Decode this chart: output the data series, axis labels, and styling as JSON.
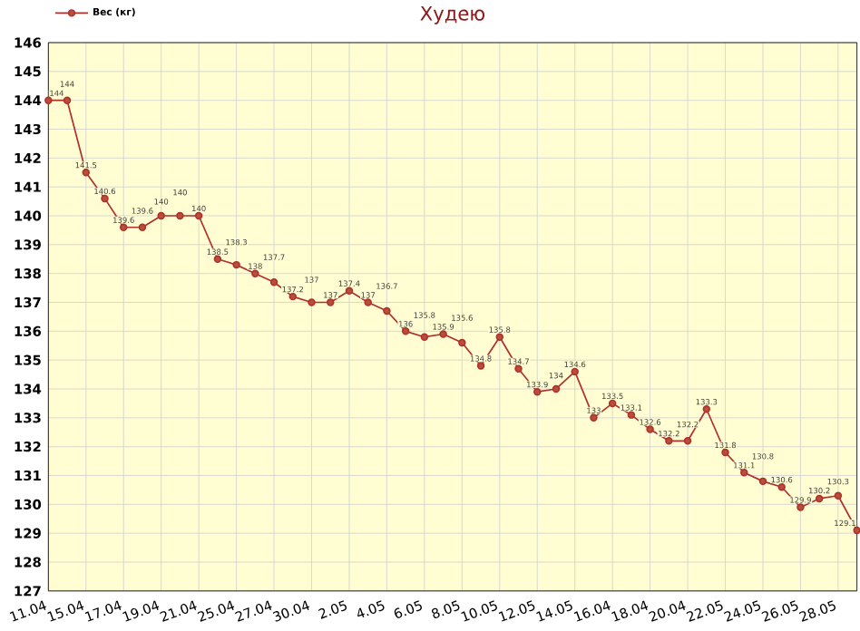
{
  "chart_data": {
    "type": "line",
    "title": "Худею",
    "categories": [
      "11.04",
      null,
      "15.04",
      null,
      "17.04",
      null,
      "19.04",
      null,
      "21.04",
      null,
      "25.04",
      null,
      "27.04",
      null,
      "30.04",
      null,
      "2.05",
      null,
      "4.05",
      null,
      "6.05",
      null,
      "8.05",
      null,
      "10.05",
      null,
      "12.05",
      null,
      "14.05",
      null,
      "16.04",
      null,
      "18.04",
      null,
      "20.04",
      null,
      "22.05",
      null,
      "24.05",
      null,
      "26.05",
      null,
      "28.05",
      null
    ],
    "series": [
      {
        "name": "Вес (кг)",
        "color": "#b03030",
        "values": [
          144,
          144,
          141.5,
          140.6,
          139.6,
          139.6,
          140,
          140,
          140,
          138.5,
          138.3,
          138,
          137.7,
          137.2,
          137,
          137,
          137.4,
          137,
          136.7,
          136,
          135.8,
          135.9,
          135.6,
          134.8,
          135.8,
          134.7,
          133.9,
          134,
          134.6,
          133,
          133.5,
          133.1,
          132.6,
          132.2,
          132.2,
          133.3,
          131.8,
          131.1,
          130.8,
          130.6,
          129.9,
          130.2,
          130.3,
          129.1
        ]
      }
    ],
    "ylim": [
      127,
      146
    ],
    "yticks": [
      127,
      128,
      129,
      130,
      131,
      132,
      133,
      134,
      135,
      136,
      137,
      138,
      139,
      140,
      141,
      142,
      143,
      144,
      145,
      146
    ],
    "grid": true,
    "legend": "top left",
    "marker": "circle",
    "line_style": "solid",
    "data_labels": true
  }
}
